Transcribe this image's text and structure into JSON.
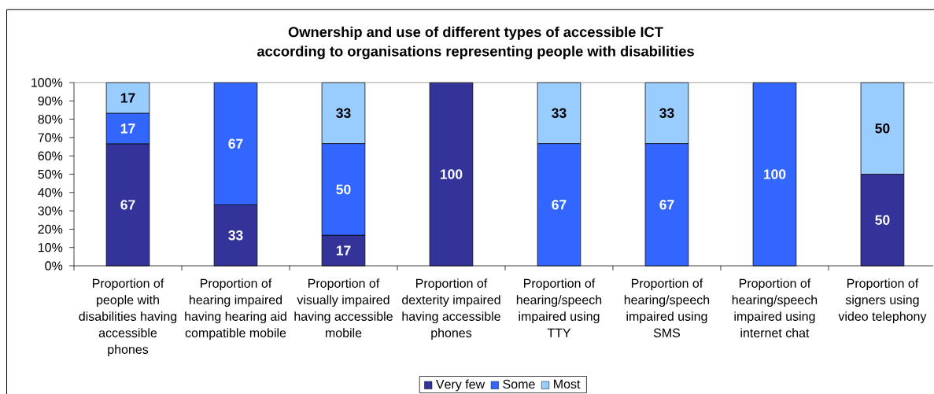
{
  "chart_data": {
    "type": "bar",
    "stacked": true,
    "title": "Ownership and use of different types of accessible ICT according to organisations representing people with disabilities",
    "categories": [
      "Proportion of people with disabilities having accessible phones",
      "Proportion of hearing impaired having hearing aid compatible mobile",
      "Proportion of visually impaired having accessible mobile",
      "Proportion of dexterity impaired having accessible phones",
      "Proportion of hearing/speech impaired using TTY",
      "Proportion of hearing/speech impaired using SMS",
      "Proportion of hearing/speech impaired using internet chat",
      "Proportion of signers using video telephony"
    ],
    "series": [
      {
        "name": "Very few",
        "color": "#333399",
        "values": [
          66.6,
          33.3,
          16.7,
          100,
          null,
          null,
          null,
          50
        ],
        "value_labels": [
          "67",
          "33",
          "17",
          "100",
          null,
          null,
          null,
          "50"
        ]
      },
      {
        "name": "Some",
        "color": "#3366ff",
        "values": [
          16.7,
          66.7,
          50,
          null,
          66.7,
          66.7,
          100,
          null
        ],
        "value_labels": [
          "17",
          "67",
          "50",
          null,
          "67",
          "67",
          "100",
          null
        ]
      },
      {
        "name": "Most",
        "color": "#99ccff",
        "values": [
          16.7,
          null,
          33.3,
          null,
          33.3,
          33.3,
          null,
          50
        ],
        "value_labels": [
          "17",
          null,
          "33",
          null,
          "33",
          "33",
          null,
          "50"
        ]
      }
    ],
    "ylim": [
      0,
      100
    ],
    "yticks": [
      {
        "value": 0,
        "label": "0%"
      },
      {
        "value": 10,
        "label": "10%"
      },
      {
        "value": 20,
        "label": "20%"
      },
      {
        "value": 30,
        "label": "30%"
      },
      {
        "value": 40,
        "label": "40%"
      },
      {
        "value": 50,
        "label": "50%"
      },
      {
        "value": 60,
        "label": "60%"
      },
      {
        "value": 70,
        "label": "70%"
      },
      {
        "value": 80,
        "label": "80%"
      },
      {
        "value": 90,
        "label": "90%"
      },
      {
        "value": 100,
        "label": "100%"
      }
    ],
    "legend": "bottom"
  }
}
